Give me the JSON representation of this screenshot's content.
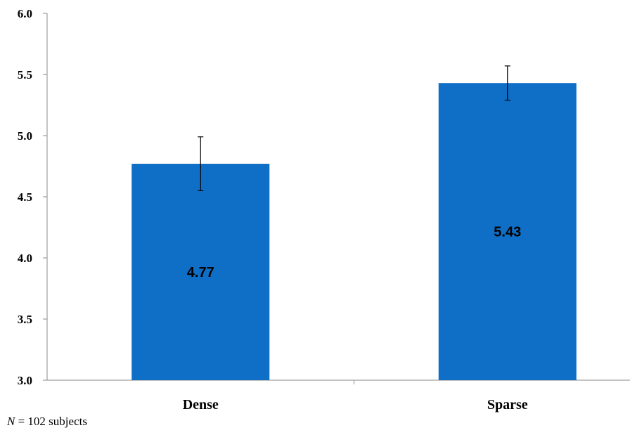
{
  "chart_data": {
    "type": "bar",
    "categories": [
      "Dense",
      "Sparse"
    ],
    "values": [
      4.77,
      5.43
    ],
    "value_labels": [
      "4.77",
      "5.43"
    ],
    "errors": [
      0.22,
      0.14
    ],
    "ylim": [
      3.0,
      6.0
    ],
    "yticks": [
      "3.0",
      "3.5",
      "4.0",
      "4.5",
      "5.0",
      "5.5",
      "6.0"
    ],
    "title": "",
    "xlabel": "",
    "ylabel": "",
    "bar_color": "#0F6FC6",
    "grid": false,
    "legend": "none"
  },
  "footnote": {
    "var": "N",
    "text": " = 102  subjects"
  }
}
